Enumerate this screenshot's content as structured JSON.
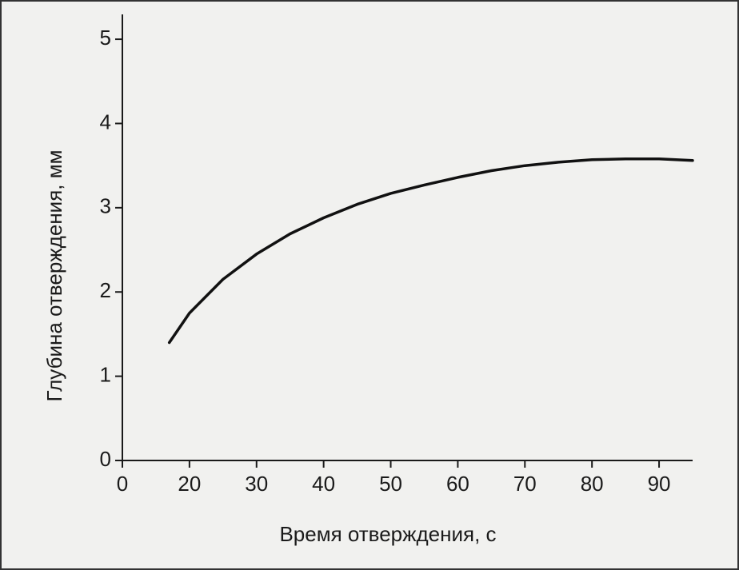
{
  "chart_data": {
    "type": "line",
    "xlabel": "Время отверждения, с",
    "ylabel": "Глубина отверждения, мм",
    "x": [
      17,
      20,
      25,
      30,
      35,
      40,
      45,
      50,
      55,
      60,
      65,
      70,
      75,
      80,
      85,
      90,
      95
    ],
    "series": [
      {
        "color": "#111111",
        "values": [
          1.4,
          1.75,
          2.15,
          2.45,
          2.69,
          2.88,
          3.04,
          3.17,
          3.27,
          3.36,
          3.44,
          3.5,
          3.54,
          3.57,
          3.58,
          3.58,
          3.56
        ]
      }
    ],
    "xlim": [
      0,
      95
    ],
    "xbreak": [
      0,
      10
    ],
    "xticks": [
      0,
      20,
      30,
      40,
      50,
      60,
      70,
      80,
      90
    ],
    "ylim": [
      0,
      5.2
    ],
    "yticks": [
      0,
      1,
      2,
      3,
      4,
      5
    ]
  }
}
